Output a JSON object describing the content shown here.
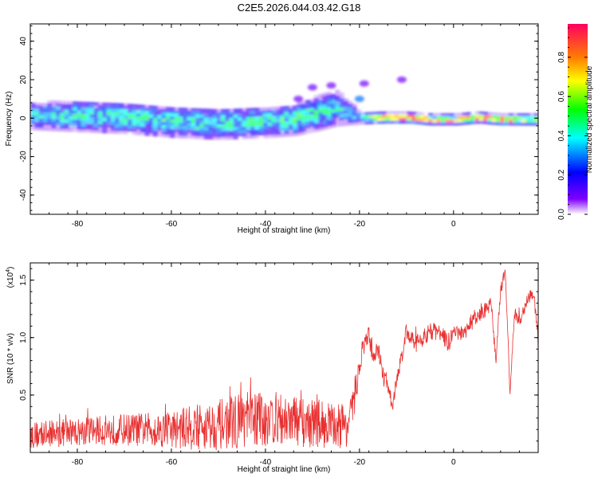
{
  "title": "C2E5.2026.044.03.42.G18",
  "chart_data": [
    {
      "type": "heatmap",
      "xlabel": "Height of straight line (km)",
      "ylabel": "Frequency (Hz)",
      "xlim": [
        -90,
        18
      ],
      "ylim": [
        -50,
        49
      ],
      "x_ticks": [
        -80,
        -60,
        -40,
        -20,
        0
      ],
      "y_ticks": [
        -40,
        -20,
        0,
        20,
        40
      ],
      "colorbar": {
        "label": "Normalized spectral amplitude",
        "range": [
          0.0,
          0.97
        ],
        "ticks": [
          0.0,
          0.2,
          0.4,
          0.6,
          0.8
        ],
        "colors": [
          "#ffffff",
          "#7f00ff",
          "#0000ff",
          "#00ffff",
          "#00ff00",
          "#ffff00",
          "#ff8000",
          "#ff0060"
        ]
      },
      "band": {
        "x": [
          -90,
          -80,
          -70,
          -60,
          -50,
          -40,
          -34,
          -30,
          -25,
          -20,
          -15,
          -10,
          -5,
          0,
          5,
          10,
          15,
          18
        ],
        "center_hz": [
          1,
          1,
          0,
          -2,
          -3,
          -2,
          -1,
          2,
          5,
          0,
          0,
          0,
          -1,
          -1,
          0,
          -1,
          -1,
          -1
        ],
        "halfwidth_hz": [
          7,
          8,
          8,
          8,
          8,
          8,
          8,
          9,
          9,
          3,
          2.5,
          2.5,
          2.5,
          2.5,
          2.5,
          2.5,
          2.5,
          2.5
        ],
        "amplitude": [
          0.35,
          0.4,
          0.4,
          0.4,
          0.4,
          0.4,
          0.45,
          0.4,
          0.35,
          0.3,
          0.85,
          0.9,
          0.7,
          0.7,
          0.85,
          0.9,
          0.6,
          0.5
        ]
      },
      "scatter_blobs": [
        {
          "x": -33,
          "y": 10,
          "value": 0.1
        },
        {
          "x": -30,
          "y": 16,
          "value": 0.1
        },
        {
          "x": -26,
          "y": 17,
          "value": 0.1
        },
        {
          "x": -19,
          "y": 18,
          "value": 0.1
        },
        {
          "x": -11,
          "y": 20,
          "value": 0.1
        },
        {
          "x": -20,
          "y": 10,
          "value": 0.3
        }
      ]
    },
    {
      "type": "line",
      "xlabel": "Height of straight line (km)",
      "ylabel": "SNR (10 * v/v)",
      "multiplier_label": "(x10",
      "multiplier_exp": "4",
      "xlim": [
        -90,
        18
      ],
      "ylim": [
        0,
        1.65
      ],
      "x_ticks": [
        -80,
        -60,
        -40,
        -20,
        0
      ],
      "y_ticks": [
        0.5,
        1.0,
        1.5
      ],
      "y_tick_labels": [
        "0.5",
        "1.0",
        "1.5"
      ],
      "series": [
        {
          "color": "#e83030",
          "x": [
            -90,
            -80,
            -70,
            -60,
            -55,
            -50,
            -45,
            -40,
            -35,
            -30,
            -25,
            -22,
            -20,
            -19,
            -18,
            -17,
            -16,
            -15,
            -14,
            -13,
            -12,
            -10,
            -8,
            -5,
            -3,
            -1,
            0,
            2,
            4,
            6,
            7,
            8,
            9,
            10,
            11,
            12,
            13,
            14,
            15,
            16,
            17,
            18
          ],
          "y": [
            0.15,
            0.18,
            0.2,
            0.2,
            0.22,
            0.24,
            0.28,
            0.3,
            0.28,
            0.26,
            0.24,
            0.25,
            0.75,
            0.95,
            1.0,
            0.85,
            0.9,
            0.65,
            0.6,
            0.4,
            0.65,
            1.05,
            0.95,
            1.05,
            1.05,
            0.95,
            1.05,
            1.02,
            1.15,
            1.2,
            1.25,
            1.3,
            0.8,
            1.4,
            1.6,
            0.5,
            1.2,
            1.15,
            1.25,
            1.35,
            1.4,
            0.95
          ],
          "noise_amplitude": [
            0.12,
            0.12,
            0.14,
            0.16,
            0.2,
            0.22,
            0.24,
            0.25,
            0.22,
            0.22,
            0.2,
            0.2,
            0.12,
            0.1,
            0.1,
            0.1,
            0.08,
            0.1,
            0.08,
            0.06,
            0.08,
            0.08,
            0.08,
            0.08,
            0.08,
            0.08,
            0.06,
            0.06,
            0.08,
            0.08,
            0.06,
            0.06,
            0.06,
            0.06,
            0.04,
            0.08,
            0.06,
            0.06,
            0.06,
            0.06,
            0.06,
            0.06
          ]
        }
      ]
    }
  ]
}
